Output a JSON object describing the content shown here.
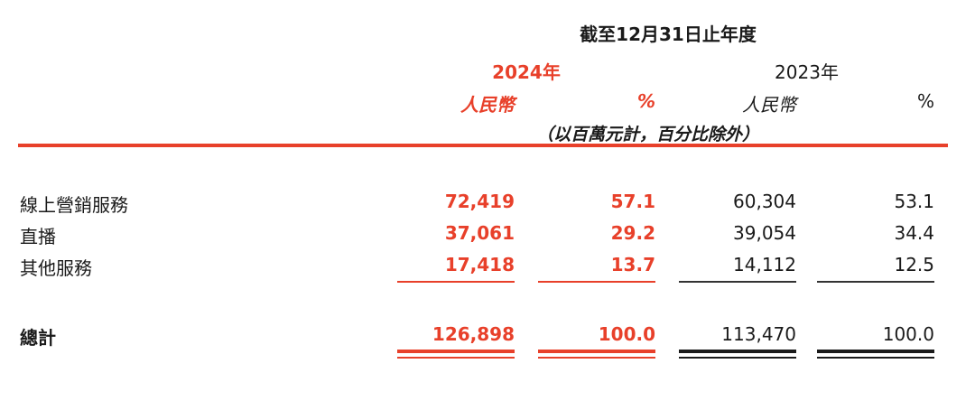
{
  "header": {
    "period": "截至12月31日止年度",
    "year_current": "2024年",
    "year_prior": "2023年",
    "unit_rmb": "人民幣",
    "unit_pct": "%",
    "note": "（以百萬元計，百分比除外）"
  },
  "rows": [
    {
      "label": "線上營銷服務",
      "rmb_2024": "72,419",
      "pct_2024": "57.1",
      "rmb_2023": "60,304",
      "pct_2023": "53.1"
    },
    {
      "label": "直播",
      "rmb_2024": "37,061",
      "pct_2024": "29.2",
      "rmb_2023": "39,054",
      "pct_2023": "34.4"
    },
    {
      "label": "其他服務",
      "rmb_2024": "17,418",
      "pct_2024": "13.7",
      "rmb_2023": "14,112",
      "pct_2023": "12.5"
    }
  ],
  "total": {
    "label": "總計",
    "rmb_2024": "126,898",
    "pct_2024": "100.0",
    "rmb_2023": "113,470",
    "pct_2023": "100.0"
  },
  "colors": {
    "accent_red": "#e8402a",
    "text_dark": "#1a1a1a"
  }
}
